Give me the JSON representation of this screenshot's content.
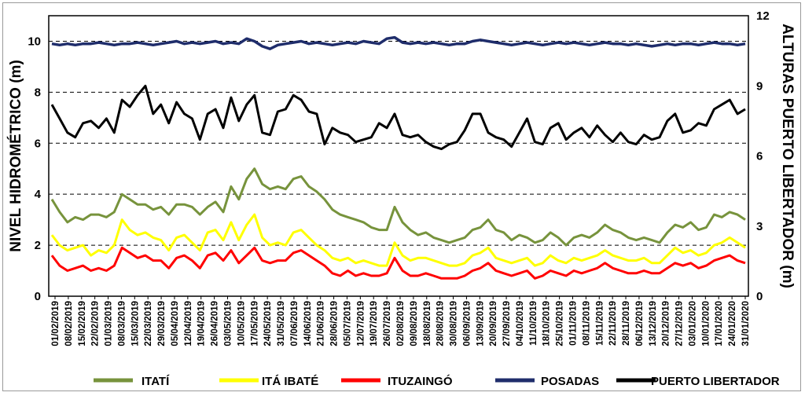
{
  "chart_data": {
    "type": "line",
    "ylabel": "NIVEL HIDROMÉTRICO (m)",
    "y2label": "ALTURAS PUERTO LIBERTADOR (m)",
    "ylim": [
      0,
      11
    ],
    "y2lim": [
      0,
      12
    ],
    "yticks": [
      "0",
      "2",
      "4",
      "6",
      "8",
      "10"
    ],
    "y2ticks": [
      "0",
      "3",
      "6",
      "9",
      "12"
    ],
    "grid": "horizontal-dashed",
    "legend_position": "bottom",
    "x_labels": [
      "01/02/2019",
      "08/02/2019",
      "15/02/2019",
      "22/02/2019",
      "01/03/2019",
      "08/03/2019",
      "15/03/2019",
      "22/03/2019",
      "29/03/2019",
      "05/04/2019",
      "12/04/2019",
      "19/04/2019",
      "26/04/2019",
      "03/05/2019",
      "10/05/2019",
      "17/05/2019",
      "24/05/2019",
      "31/05/2019",
      "07/06/2019",
      "14/06/2019",
      "21/06/2019",
      "28/06/2019",
      "05/07/2019",
      "12/07/2019",
      "19/07/2019",
      "26/07/2019",
      "02/08/2019",
      "09/08/2019",
      "18/08/2019",
      "28/08/2019",
      "30/08/2019",
      "06/09/2019",
      "13/09/2019",
      "20/09/2019",
      "27/09/2019",
      "04/10/2019",
      "11/10/2019",
      "18/10/2019",
      "25/10/2019",
      "01/11/2019",
      "08/11/2019",
      "15/11/2019",
      "22/11/2019",
      "28/11/2019",
      "06/12/2019",
      "13/12/2019",
      "20/12/2019",
      "27/12/2019",
      "03/01/2020",
      "10/01/2020",
      "17/01/2020",
      "24/01/2020",
      "31/01/2020"
    ],
    "series": [
      {
        "name": "ITATÍ",
        "color": "#77933c",
        "axis": "left",
        "values": [
          3.8,
          3.3,
          2.9,
          3.1,
          3.0,
          3.2,
          3.2,
          3.1,
          3.3,
          4.0,
          3.8,
          3.6,
          3.6,
          3.4,
          3.5,
          3.2,
          3.6,
          3.6,
          3.5,
          3.2,
          3.5,
          3.7,
          3.3,
          4.3,
          3.8,
          4.6,
          5.0,
          4.4,
          4.2,
          4.3,
          4.2,
          4.6,
          4.7,
          4.3,
          4.1,
          3.8,
          3.4,
          3.2,
          3.1,
          3.0,
          2.9,
          2.7,
          2.6,
          2.6,
          3.5,
          2.9,
          2.6,
          2.4,
          2.5,
          2.3,
          2.2,
          2.1,
          2.2,
          2.3,
          2.6,
          2.7,
          3.0,
          2.6,
          2.5,
          2.2,
          2.4,
          2.3,
          2.1,
          2.2,
          2.5,
          2.3,
          2.0,
          2.3,
          2.4,
          2.3,
          2.5,
          2.8,
          2.6,
          2.5,
          2.3,
          2.2,
          2.3,
          2.2,
          2.1,
          2.5,
          2.8,
          2.7,
          2.9,
          2.6,
          2.7,
          3.2,
          3.1,
          3.3,
          3.2,
          3.0
        ]
      },
      {
        "name": "ITÁ IBATÉ",
        "color": "#ffff00",
        "axis": "left",
        "values": [
          2.4,
          2.0,
          1.8,
          1.9,
          2.0,
          1.6,
          1.8,
          1.7,
          2.0,
          3.0,
          2.6,
          2.4,
          2.5,
          2.3,
          2.2,
          1.8,
          2.3,
          2.4,
          2.1,
          1.8,
          2.5,
          2.6,
          2.2,
          2.9,
          2.2,
          2.8,
          3.2,
          2.3,
          2.0,
          2.1,
          2.0,
          2.5,
          2.6,
          2.3,
          2.0,
          1.8,
          1.5,
          1.4,
          1.5,
          1.3,
          1.4,
          1.3,
          1.2,
          1.2,
          2.1,
          1.6,
          1.4,
          1.5,
          1.5,
          1.4,
          1.3,
          1.2,
          1.2,
          1.3,
          1.6,
          1.7,
          1.9,
          1.5,
          1.4,
          1.3,
          1.4,
          1.5,
          1.2,
          1.3,
          1.6,
          1.4,
          1.3,
          1.5,
          1.4,
          1.5,
          1.6,
          1.8,
          1.6,
          1.5,
          1.4,
          1.4,
          1.5,
          1.3,
          1.3,
          1.6,
          1.9,
          1.7,
          1.8,
          1.6,
          1.7,
          2.0,
          2.1,
          2.3,
          2.1,
          1.9
        ]
      },
      {
        "name": "ITUZAINGÓ",
        "color": "#ff0000",
        "axis": "left",
        "values": [
          1.6,
          1.2,
          1.0,
          1.1,
          1.2,
          1.0,
          1.1,
          1.0,
          1.2,
          1.9,
          1.7,
          1.5,
          1.6,
          1.4,
          1.4,
          1.1,
          1.5,
          1.6,
          1.4,
          1.1,
          1.6,
          1.7,
          1.4,
          1.8,
          1.3,
          1.6,
          1.9,
          1.4,
          1.3,
          1.4,
          1.4,
          1.7,
          1.8,
          1.6,
          1.4,
          1.2,
          0.9,
          0.8,
          1.0,
          0.8,
          0.9,
          0.8,
          0.8,
          0.9,
          1.5,
          1.0,
          0.8,
          0.8,
          0.9,
          0.8,
          0.7,
          0.7,
          0.7,
          0.8,
          1.0,
          1.1,
          1.3,
          1.0,
          0.9,
          0.8,
          0.9,
          1.0,
          0.7,
          0.8,
          1.0,
          0.9,
          0.8,
          1.0,
          0.9,
          1.0,
          1.1,
          1.3,
          1.1,
          1.0,
          0.9,
          0.9,
          1.0,
          0.9,
          0.9,
          1.1,
          1.3,
          1.2,
          1.3,
          1.1,
          1.2,
          1.4,
          1.5,
          1.6,
          1.4,
          1.3
        ]
      },
      {
        "name": "POSADAS",
        "color": "#1f2d6b",
        "axis": "left",
        "values": [
          9.9,
          9.85,
          9.9,
          9.85,
          9.9,
          9.9,
          9.95,
          9.9,
          9.85,
          9.9,
          9.9,
          9.95,
          9.9,
          9.85,
          9.9,
          9.95,
          10.0,
          9.9,
          9.95,
          9.9,
          9.95,
          10.0,
          9.9,
          9.95,
          9.9,
          10.1,
          10.0,
          9.8,
          9.7,
          9.85,
          9.9,
          9.95,
          10.0,
          9.9,
          9.95,
          9.9,
          9.85,
          9.9,
          9.95,
          9.9,
          10.0,
          9.95,
          9.9,
          10.1,
          10.15,
          9.95,
          9.9,
          9.95,
          9.9,
          9.95,
          9.9,
          9.85,
          9.9,
          9.9,
          10.0,
          10.05,
          10.0,
          9.95,
          9.9,
          9.85,
          9.9,
          9.95,
          9.9,
          9.85,
          9.9,
          9.95,
          9.9,
          9.95,
          9.9,
          9.85,
          9.9,
          9.95,
          9.9,
          9.9,
          9.85,
          9.9,
          9.85,
          9.8,
          9.85,
          9.9,
          9.85,
          9.9,
          9.9,
          9.85,
          9.9,
          9.95,
          9.9,
          9.9,
          9.85,
          9.9
        ]
      },
      {
        "name": "PUERTO LIBERTADOR",
        "color": "#000000",
        "axis": "right",
        "values": [
          8.2,
          7.6,
          7.0,
          6.8,
          7.4,
          7.5,
          7.2,
          7.6,
          7.0,
          8.4,
          8.1,
          8.6,
          9.0,
          7.8,
          8.2,
          7.4,
          8.3,
          7.8,
          7.6,
          6.7,
          7.8,
          8.0,
          7.2,
          8.5,
          7.5,
          8.2,
          8.6,
          7.0,
          6.9,
          7.9,
          8.0,
          8.6,
          8.4,
          7.9,
          7.8,
          6.5,
          7.2,
          7.0,
          6.9,
          6.6,
          6.7,
          6.8,
          7.4,
          7.2,
          7.8,
          6.9,
          6.8,
          6.9,
          6.6,
          6.4,
          6.3,
          6.5,
          6.6,
          7.1,
          7.8,
          7.8,
          7.0,
          6.8,
          6.7,
          6.4,
          7.0,
          7.6,
          6.6,
          6.5,
          7.2,
          7.4,
          6.7,
          7.0,
          7.2,
          6.8,
          7.3,
          6.9,
          6.6,
          7.0,
          6.6,
          6.5,
          6.9,
          6.7,
          6.8,
          7.5,
          7.8,
          7.0,
          7.1,
          7.4,
          7.3,
          8.0,
          8.2,
          8.4,
          7.8,
          8.0
        ]
      }
    ]
  }
}
